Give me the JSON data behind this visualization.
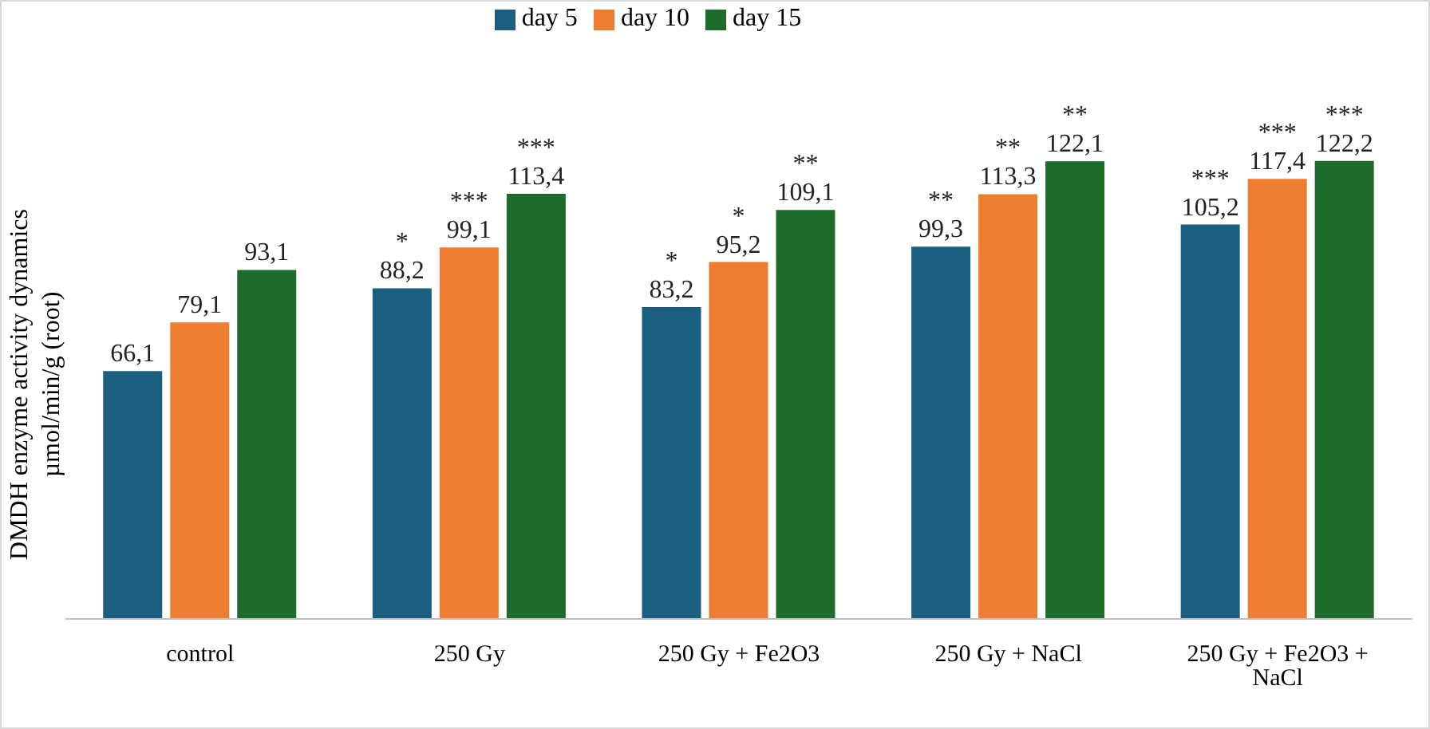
{
  "chart_data": {
    "type": "bar",
    "ylabel": "DMDH enzyme activity dynamics\nµmol/min/g (root)",
    "categories": [
      "control",
      "250 Gy",
      "250 Gy + Fe2O3",
      "250 Gy + NaCl",
      "250 Gy + Fe2O3 + NaCl"
    ],
    "legend": "top",
    "grid": false,
    "series": [
      {
        "name": "day 5",
        "color": "#1a5e80",
        "values": [
          66.1,
          88.2,
          83.2,
          99.3,
          105.2
        ],
        "value_labels": [
          "66,1",
          "88,2",
          "83,2",
          "99,3",
          "105,2"
        ]
      },
      {
        "name": "day 10",
        "color": "#ed7d31",
        "values": [
          79.1,
          99.1,
          95.2,
          113.3,
          117.4
        ],
        "value_labels": [
          "79,1",
          "99,1",
          "95,2",
          "113,3",
          "117,4"
        ]
      },
      {
        "name": "day 15",
        "color": "#1e6b2b",
        "values": [
          93.1,
          113.4,
          109.1,
          122.1,
          122.2
        ],
        "value_labels": [
          "93,1",
          "113,4",
          "109,1",
          "122,1",
          "122,2"
        ]
      }
    ],
    "annotations": [
      "*",
      "***",
      "***",
      "*",
      "*",
      "**",
      "**",
      "**",
      "**",
      "***",
      "***",
      "***"
    ]
  }
}
